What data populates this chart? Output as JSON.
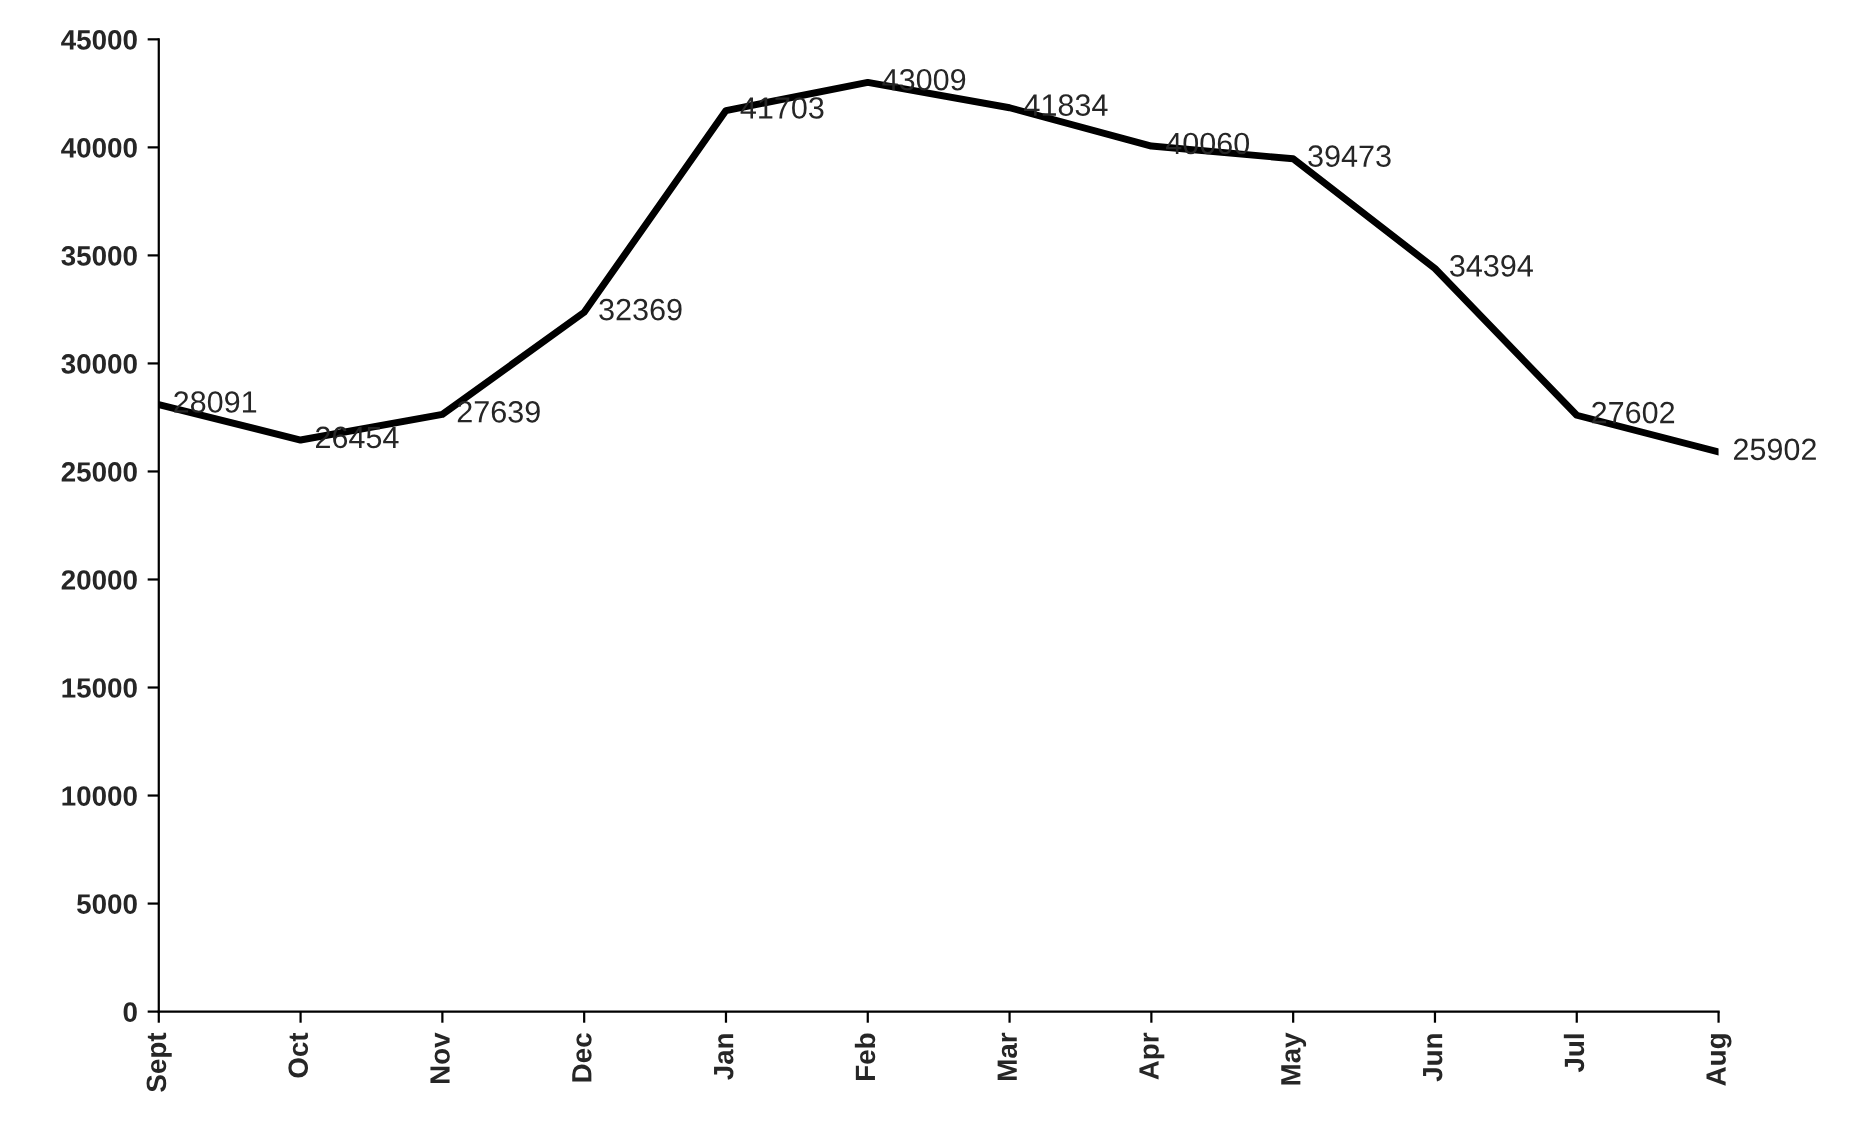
{
  "chart_data": {
    "type": "line",
    "categories": [
      "Sept",
      "Oct",
      "Nov",
      "Dec",
      "Jan",
      "Feb",
      "Mar",
      "Apr",
      "May",
      "Jun",
      "Jul",
      "Aug"
    ],
    "values": [
      28091,
      26454,
      27639,
      32369,
      41703,
      43009,
      41834,
      40060,
      39473,
      34394,
      27602,
      25902
    ],
    "color": "#000000",
    "ylim": [
      0,
      45000
    ],
    "yticks": [
      0,
      5000,
      10000,
      15000,
      20000,
      25000,
      30000,
      35000,
      40000,
      45000
    ],
    "grid": false,
    "legend": false,
    "data_labels": true,
    "marker": "none",
    "line_style": "solid"
  }
}
